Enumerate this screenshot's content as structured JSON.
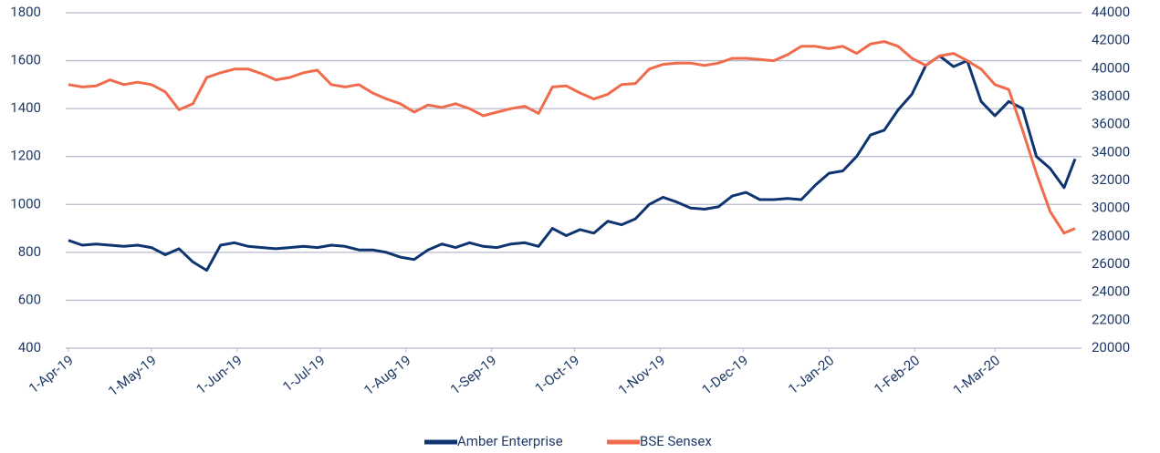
{
  "chart_data": {
    "type": "line",
    "x": [
      "2019-04-01",
      "2019-04-06",
      "2019-04-11",
      "2019-04-16",
      "2019-04-21",
      "2019-04-26",
      "2019-05-01",
      "2019-05-06",
      "2019-05-11",
      "2019-05-16",
      "2019-05-21",
      "2019-05-26",
      "2019-05-31",
      "2019-06-05",
      "2019-06-10",
      "2019-06-15",
      "2019-06-20",
      "2019-06-25",
      "2019-06-30",
      "2019-07-05",
      "2019-07-10",
      "2019-07-15",
      "2019-07-20",
      "2019-07-25",
      "2019-07-30",
      "2019-08-04",
      "2019-08-09",
      "2019-08-14",
      "2019-08-19",
      "2019-08-24",
      "2019-08-29",
      "2019-09-03",
      "2019-09-08",
      "2019-09-13",
      "2019-09-18",
      "2019-09-23",
      "2019-09-28",
      "2019-10-03",
      "2019-10-08",
      "2019-10-13",
      "2019-10-18",
      "2019-10-23",
      "2019-10-28",
      "2019-11-02",
      "2019-11-07",
      "2019-11-12",
      "2019-11-17",
      "2019-11-22",
      "2019-11-27",
      "2019-12-02",
      "2019-12-07",
      "2019-12-12",
      "2019-12-17",
      "2019-12-22",
      "2019-12-27",
      "2020-01-01",
      "2020-01-06",
      "2020-01-11",
      "2020-01-16",
      "2020-01-21",
      "2020-01-26",
      "2020-01-31",
      "2020-02-05",
      "2020-02-10",
      "2020-02-15",
      "2020-02-20",
      "2020-02-25",
      "2020-03-01",
      "2020-03-06",
      "2020-03-11",
      "2020-03-16",
      "2020-03-21",
      "2020-03-26",
      "2020-03-30"
    ],
    "series": [
      {
        "name": "Amber Enterprise",
        "color": "#0e3570",
        "values": [
          850,
          830,
          835,
          830,
          825,
          830,
          820,
          790,
          815,
          760,
          725,
          830,
          840,
          825,
          820,
          815,
          820,
          825,
          820,
          830,
          825,
          810,
          810,
          800,
          780,
          770,
          810,
          835,
          820,
          840,
          825,
          820,
          835,
          840,
          825,
          900,
          870,
          895,
          880,
          930,
          915,
          940,
          1000,
          1030,
          1010,
          985,
          980,
          990,
          1035,
          1050,
          1020,
          1020,
          1025,
          1020,
          1080,
          1130,
          1140,
          1200,
          1290,
          1310,
          1395,
          1460,
          1580,
          1620,
          1575,
          1600,
          1430,
          1370,
          1430,
          1400,
          1200,
          1150,
          1070,
          1190
        ]
      },
      {
        "name": "BSE Sensex",
        "color": "#ef6b4b",
        "axis": "y2",
        "values": [
          38860,
          38690,
          38770,
          39200,
          38860,
          39030,
          38860,
          38340,
          37060,
          37490,
          39370,
          39710,
          39970,
          39970,
          39630,
          39200,
          39370,
          39710,
          39890,
          38860,
          38690,
          38860,
          38260,
          37830,
          37490,
          36890,
          37400,
          37230,
          37490,
          37140,
          36630,
          36890,
          37140,
          37310,
          36800,
          38690,
          38770,
          38260,
          37830,
          38170,
          38860,
          38940,
          39970,
          40310,
          40400,
          40400,
          40230,
          40400,
          40740,
          40740,
          40660,
          40570,
          41000,
          41600,
          41600,
          41430,
          41600,
          41090,
          41770,
          41940,
          41600,
          40740,
          40230,
          40910,
          41090,
          40570,
          39970,
          38860,
          38510,
          35600,
          32510,
          29770,
          28230,
          28570
        ]
      }
    ],
    "xlim": [
      "2019-04-01",
      "2020-03-30"
    ],
    "xticks": [
      {
        "value": "2019-04-01",
        "label": "1-Apr-19"
      },
      {
        "value": "2019-05-01",
        "label": "1-May-19"
      },
      {
        "value": "2019-06-01",
        "label": "1-Jun-19"
      },
      {
        "value": "2019-07-01",
        "label": "1-Jul-19"
      },
      {
        "value": "2019-08-01",
        "label": "1-Aug-19"
      },
      {
        "value": "2019-09-01",
        "label": "1-Sep-19"
      },
      {
        "value": "2019-10-01",
        "label": "1-Oct-19"
      },
      {
        "value": "2019-11-01",
        "label": "1-Nov-19"
      },
      {
        "value": "2019-12-01",
        "label": "1-Dec-19"
      },
      {
        "value": "2020-01-01",
        "label": "1-Jan-20"
      },
      {
        "value": "2020-02-01",
        "label": "1-Feb-20"
      },
      {
        "value": "2020-03-01",
        "label": "1-Mar-20"
      }
    ],
    "ylim": [
      400,
      1800
    ],
    "yticks": [
      400,
      600,
      800,
      1000,
      1200,
      1400,
      1600,
      1800
    ],
    "y2lim": [
      20000,
      44000
    ],
    "y2ticks": [
      20000,
      22000,
      24000,
      26000,
      28000,
      30000,
      32000,
      34000,
      36000,
      38000,
      40000,
      42000,
      44000
    ],
    "grid": true,
    "legend": "bottom"
  }
}
